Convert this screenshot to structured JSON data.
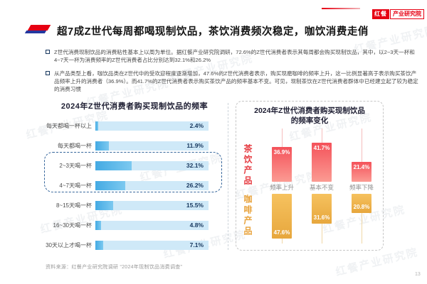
{
  "header": {
    "logo_primary": "红餐",
    "logo_secondary": "产业研究院",
    "title": "超7成Z世代每周都喝现制饮品，茶饮消费频次稳定，咖饮消费走俏"
  },
  "bullets": [
    "Z世代消费现制饮品的消费粘性基本上以周为单位。据红餐产业研究院调研，72.6%的Z世代消费者表示其每周都会购买现制饮品，其中，以2~3天一杯和4~7天一杯为消费频率的Z世代消费者占比分别达到32.1%和26.2%",
    "从产品类型上看，咖饮品类在Z世代中的受欢迎程度逐渐增加，47.6%的Z世代消费者表示，购买现磨咖啡的频率上升，这一比例显著高于表示购买茶饮产品频率上升的消费者（36.9%）。而41.7%的Z世代消费者表示购买茶饮产品的频率基本不变。可见，现制茶饮在Z世代消费者群体中已经建立起了较为稳定的消费习惯"
  ],
  "chart_data": [
    {
      "type": "bar",
      "orientation": "horizontal",
      "title": "2024年Z世代消费者购买现制饮品的频率",
      "categories": [
        "每天都喝一杯以上",
        "每天都喝一杯",
        "2~3天喝一杯",
        "4~7天喝一杯",
        "8~15天喝一杯",
        "16~30天喝一杯",
        "30天以上才喝一杯"
      ],
      "values": [
        2.4,
        11.9,
        32.1,
        26.2,
        15.5,
        4.8,
        7.1
      ],
      "unit": "%",
      "xlim": [
        0,
        100
      ],
      "highlighted_categories": [
        "2~3天喝一杯",
        "4~7天喝一杯"
      ],
      "bar_color": "#55b4e6",
      "track_color": "#cfe9f8",
      "value_label_color": "#17375e"
    },
    {
      "type": "bar",
      "orientation": "vertical-diverging",
      "title": "2024年Z世代消费者购买现制饮品的频率变化",
      "title_lines": [
        "2024年Z世代消费者购买现制饮品",
        "的频率变化"
      ],
      "categories": [
        "频率上升",
        "基本不变",
        "频率下降"
      ],
      "series": [
        {
          "name": "茶饮产品",
          "direction": "up",
          "color": "#f4525a",
          "values": [
            36.9,
            41.7,
            21.4
          ]
        },
        {
          "name": "咖啡产品",
          "direction": "down",
          "color": "#eeb04b",
          "values": [
            47.6,
            31.6,
            20.8
          ]
        }
      ],
      "unit": "%",
      "legend_position": "left"
    }
  ],
  "footer": {
    "source": "资料来源：红餐产业研究院调研 “2024年现制饮品消费调查”",
    "page_number": "13"
  },
  "watermark_text": "红餐产业研究院",
  "colors": {
    "brand_red": "#e60012",
    "accent_blue": "#2438a0",
    "tea_red": "#f4525a",
    "coffee_gold": "#eeb04b",
    "bar_blue": "#55b4e6",
    "navy_text": "#17375e"
  }
}
